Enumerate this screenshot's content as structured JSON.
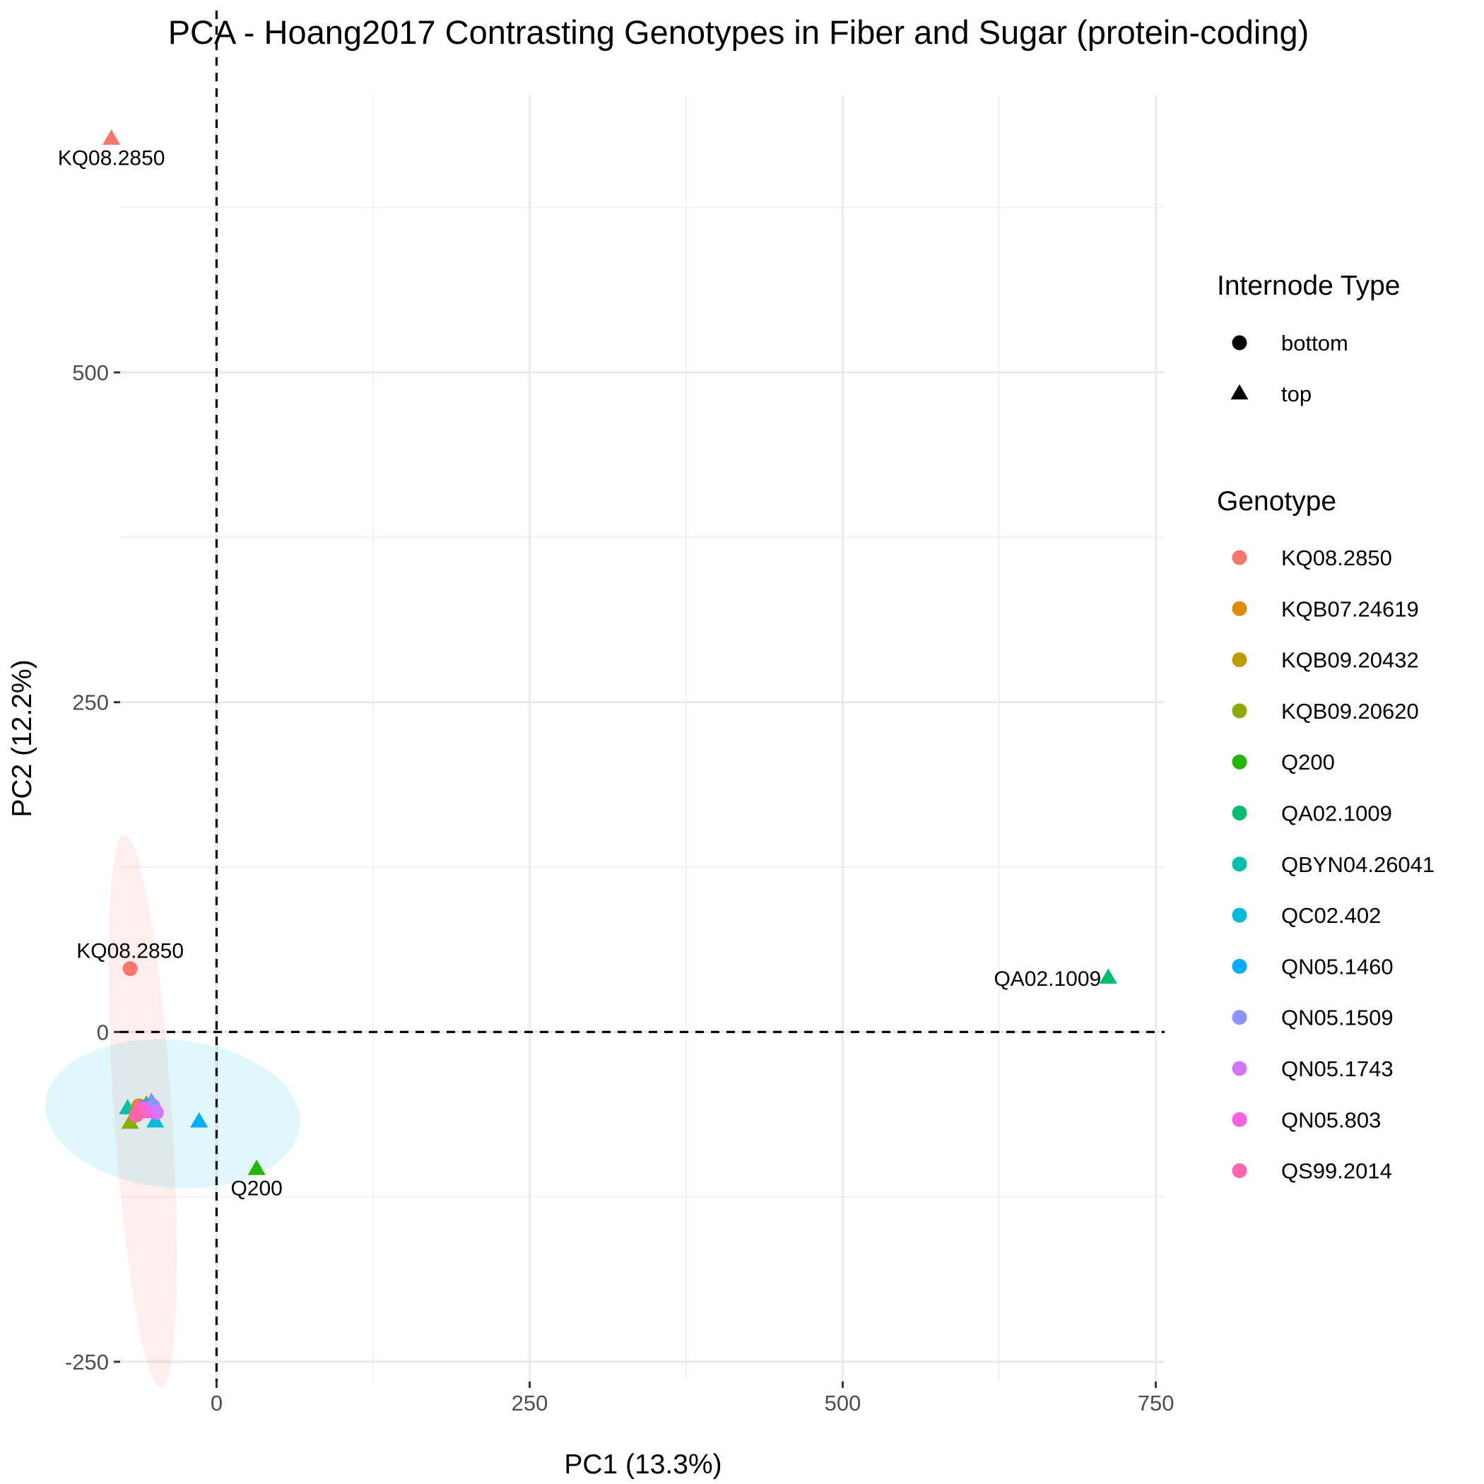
{
  "chart_data": {
    "type": "scatter",
    "title": "PCA - Hoang2017 Contrasting Genotypes in Fiber and Sugar (protein-coding)",
    "xlabel": "PC1 (13.3%)",
    "ylabel": "PC2 (12.2%)",
    "xlim": [
      -77,
      757
    ],
    "ylim": [
      -265,
      710
    ],
    "x_ticks": [
      0,
      250,
      500,
      750
    ],
    "x_tick_labels": [
      "0",
      "250",
      "500",
      "750"
    ],
    "y_ticks": [
      -250,
      0,
      250,
      500
    ],
    "y_tick_labels": [
      "-250",
      "0",
      "250",
      "500"
    ],
    "grid": true,
    "reference_lines": {
      "x": 0,
      "y": 0
    },
    "legend_position": "right",
    "shape_legend": {
      "title": "Internode Type",
      "items": [
        {
          "label": "bottom",
          "shape": "circle"
        },
        {
          "label": "top",
          "shape": "triangle"
        }
      ]
    },
    "color_legend": {
      "title": "Genotype",
      "items": [
        {
          "label": "KQ08.2850",
          "color": "#F8766D"
        },
        {
          "label": "KQB07.24619",
          "color": "#E18A00"
        },
        {
          "label": "KQB09.20432",
          "color": "#BE9C00"
        },
        {
          "label": "KQB09.20620",
          "color": "#8CAB00"
        },
        {
          "label": "Q200",
          "color": "#24B700"
        },
        {
          "label": "QA02.1009",
          "color": "#00BE70"
        },
        {
          "label": "QBYN04.26041",
          "color": "#00C1AB"
        },
        {
          "label": "QC02.402",
          "color": "#00BBDA"
        },
        {
          "label": "QN05.1460",
          "color": "#00ACFC"
        },
        {
          "label": "QN05.1509",
          "color": "#8B93FF"
        },
        {
          "label": "QN05.1743",
          "color": "#D575FE"
        },
        {
          "label": "QN05.803",
          "color": "#F962DD"
        },
        {
          "label": "QS99.2014",
          "color": "#FF65AC"
        }
      ]
    },
    "ellipses": [
      {
        "group": "bottom",
        "color": "#F8766D",
        "cx": -59,
        "cy": -60,
        "rx": 210,
        "ry": 23,
        "angle_deg": -86
      },
      {
        "group": "top",
        "color": "#00BBDA",
        "cx": -35,
        "cy": -62,
        "rx": 102,
        "ry": 56,
        "angle_deg": -5
      }
    ],
    "points": [
      {
        "genotype": "KQ08.2850",
        "type": "top",
        "x": -84,
        "y": 677,
        "label": "KQ08.2850"
      },
      {
        "genotype": "KQ08.2850",
        "type": "bottom",
        "x": -69,
        "y": 48,
        "label": "KQ08.2850"
      },
      {
        "genotype": "QA02.1009",
        "type": "top",
        "x": 712,
        "y": 41,
        "label": "QA02.1009"
      },
      {
        "genotype": "Q200",
        "type": "top",
        "x": 32,
        "y": -104,
        "label": "Q200"
      },
      {
        "genotype": "QN05.1460",
        "type": "top",
        "x": -14,
        "y": -68,
        "label": ""
      },
      {
        "genotype": "QBYN04.26041",
        "type": "top",
        "x": -71,
        "y": -58,
        "label": ""
      },
      {
        "genotype": "KQB09.20620",
        "type": "top",
        "x": -69,
        "y": -69,
        "label": ""
      },
      {
        "genotype": "QC02.402",
        "type": "top",
        "x": -49,
        "y": -68,
        "label": ""
      },
      {
        "genotype": "KQB09.20432",
        "type": "top",
        "x": -56,
        "y": -55,
        "label": ""
      },
      {
        "genotype": "KQB07.24619",
        "type": "top",
        "x": -60,
        "y": -58,
        "label": ""
      },
      {
        "genotype": "QN05.1509",
        "type": "top",
        "x": -52,
        "y": -53,
        "label": ""
      },
      {
        "genotype": "QN05.1743",
        "type": "top",
        "x": -50,
        "y": -57,
        "label": ""
      },
      {
        "genotype": "KQB07.24619",
        "type": "bottom",
        "x": -62,
        "y": -56,
        "label": ""
      },
      {
        "genotype": "KQB09.20432",
        "type": "bottom",
        "x": -57,
        "y": -58,
        "label": ""
      },
      {
        "genotype": "KQB09.20620",
        "type": "bottom",
        "x": -64,
        "y": -60,
        "label": ""
      },
      {
        "genotype": "QBYN04.26041",
        "type": "bottom",
        "x": -58,
        "y": -57,
        "label": ""
      },
      {
        "genotype": "QC02.402",
        "type": "bottom",
        "x": -52,
        "y": -59,
        "label": ""
      },
      {
        "genotype": "QN05.1460",
        "type": "bottom",
        "x": -55,
        "y": -56,
        "label": ""
      },
      {
        "genotype": "QN05.1509",
        "type": "bottom",
        "x": -51,
        "y": -56,
        "label": ""
      },
      {
        "genotype": "QN05.1743",
        "type": "bottom",
        "x": -48,
        "y": -61,
        "label": ""
      },
      {
        "genotype": "QN05.803",
        "type": "bottom",
        "x": -59,
        "y": -58,
        "label": ""
      },
      {
        "genotype": "QN05.803",
        "type": "top",
        "x": -56,
        "y": -61,
        "label": ""
      },
      {
        "genotype": "QS99.2014",
        "type": "bottom",
        "x": -64,
        "y": -63,
        "label": ""
      },
      {
        "genotype": "QS99.2014",
        "type": "top",
        "x": -63,
        "y": -58,
        "label": ""
      }
    ]
  }
}
